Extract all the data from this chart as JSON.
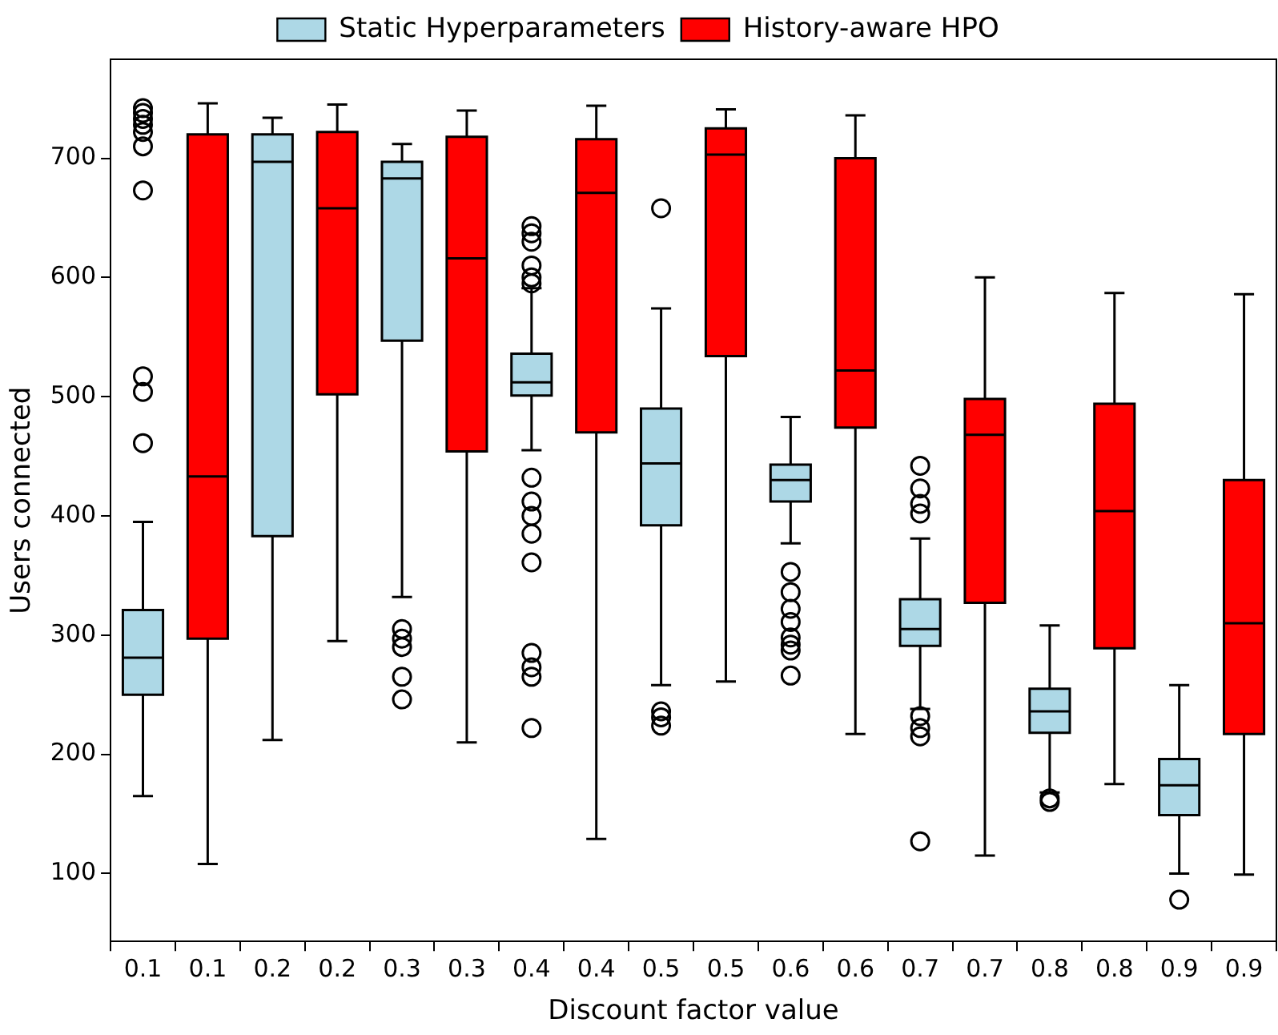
{
  "chart_data": {
    "type": "box",
    "xlabel": "Discount factor value",
    "ylabel": "Users connected",
    "categories": [
      "0.1",
      "0.1",
      "0.2",
      "0.2",
      "0.3",
      "0.3",
      "0.4",
      "0.4",
      "0.5",
      "0.5",
      "0.6",
      "0.6",
      "0.7",
      "0.7",
      "0.8",
      "0.8",
      "0.9",
      "0.9"
    ],
    "ylim": [
      43,
      783
    ],
    "yticks": [
      100,
      200,
      300,
      400,
      500,
      600,
      700
    ],
    "grid": false,
    "legend": "top",
    "series": [
      {
        "name": "Static Hyperparameters",
        "color": "#add8e6",
        "boxes": [
          {
            "low": 165,
            "q1": 250,
            "median": 281,
            "q3": 321,
            "high": 395,
            "outliers": [
              461,
              504,
              517,
              673,
              710,
              722,
              728,
              733,
              738,
              742
            ]
          },
          null,
          {
            "low": 212,
            "q1": 383,
            "median": 697,
            "q3": 720,
            "high": 734
          },
          null,
          {
            "low": 332,
            "q1": 547,
            "median": 683,
            "q3": 697,
            "high": 712,
            "outliers": [
              305,
              297,
              290,
              265,
              246
            ]
          },
          null,
          {
            "low": 455,
            "q1": 501,
            "median": 512,
            "q3": 536,
            "high": 591,
            "outliers": [
              595,
              600,
              610,
              630,
              637,
              643,
              432,
              412,
              400,
              385,
              361,
              285,
              273,
              265,
              222
            ]
          },
          null,
          {
            "low": 258,
            "q1": 392,
            "median": 444,
            "q3": 490,
            "high": 574,
            "outliers": [
              658,
              236,
              231,
              224
            ]
          },
          null,
          {
            "low": 377,
            "q1": 412,
            "median": 430,
            "q3": 443,
            "high": 483,
            "outliers": [
              353,
              336,
              322,
              311,
              298,
              292,
              287,
              266
            ]
          },
          null,
          {
            "low": 238,
            "q1": 291,
            "median": 305,
            "q3": 330,
            "high": 381,
            "outliers": [
              442,
              423,
              410,
              402,
              232,
              222,
              215,
              127
            ]
          },
          null,
          {
            "low": 168,
            "q1": 218,
            "median": 236,
            "q3": 255,
            "high": 308,
            "outliers": [
              163,
              160
            ]
          },
          null,
          {
            "low": 100,
            "q1": 149,
            "median": 174,
            "q3": 196,
            "high": 258,
            "outliers": [
              78
            ]
          },
          null
        ]
      },
      {
        "name": "History-aware HPO",
        "color": "#ff0000",
        "boxes": [
          null,
          {
            "low": 108,
            "q1": 297,
            "median": 433,
            "q3": 720,
            "high": 746
          },
          null,
          {
            "low": 295,
            "q1": 502,
            "median": 658,
            "q3": 722,
            "high": 745
          },
          null,
          {
            "low": 210,
            "q1": 454,
            "median": 616,
            "q3": 718,
            "high": 740
          },
          null,
          {
            "low": 129,
            "q1": 470,
            "median": 671,
            "q3": 716,
            "high": 744
          },
          null,
          {
            "low": 261,
            "q1": 534,
            "median": 703,
            "q3": 725,
            "high": 741
          },
          null,
          {
            "low": 217,
            "q1": 474,
            "median": 522,
            "q3": 700,
            "high": 736
          },
          null,
          {
            "low": 115,
            "q1": 327,
            "median": 468,
            "q3": 498,
            "high": 600
          },
          null,
          {
            "low": 175,
            "q1": 289,
            "median": 404,
            "q3": 494,
            "high": 587
          },
          null,
          {
            "low": 99,
            "q1": 217,
            "median": 310,
            "q3": 430,
            "high": 586
          }
        ]
      }
    ]
  }
}
